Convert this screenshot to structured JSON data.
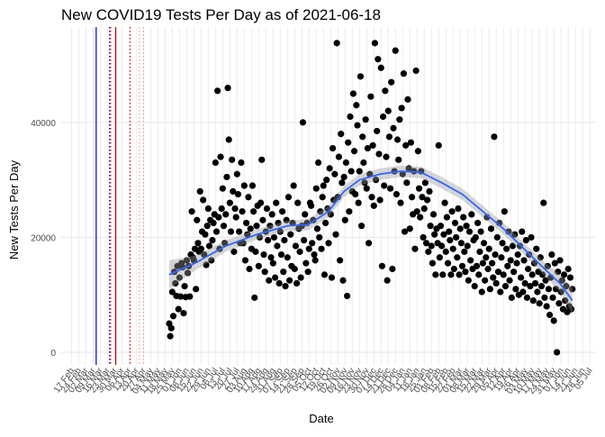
{
  "chart_data": {
    "type": "scatter",
    "title": "New COVID19 Tests Per Day as of 2021-06-18",
    "x_label": "Date",
    "y_label": "New Tests Per Day",
    "xlim": [
      -10,
      510
    ],
    "ylim": [
      -2200,
      56600
    ],
    "yticks": [
      0,
      20000,
      40000
    ],
    "xticks": [
      {
        "value": 0,
        "label": "17 Feb"
      },
      {
        "value": 7,
        "label": "24 Feb"
      },
      {
        "value": 14,
        "label": "02 Mar"
      },
      {
        "value": 21,
        "label": "09 Mar"
      },
      {
        "value": 28,
        "label": "16 Mar"
      },
      {
        "value": 35,
        "label": "23 Mar"
      },
      {
        "value": 42,
        "label": "30 Mar"
      },
      {
        "value": 49,
        "label": "06 Apr"
      },
      {
        "value": 56,
        "label": "13 Apr"
      },
      {
        "value": 63,
        "label": "20 Apr"
      },
      {
        "value": 70,
        "label": "27 Apr"
      },
      {
        "value": 77,
        "label": "04 May"
      },
      {
        "value": 84,
        "label": "11 May"
      },
      {
        "value": 91,
        "label": "18 May"
      },
      {
        "value": 98,
        "label": "25 May"
      },
      {
        "value": 105,
        "label": "01 Jun"
      },
      {
        "value": 112,
        "label": "08 Jun"
      },
      {
        "value": 119,
        "label": "15 Jun"
      },
      {
        "value": 126,
        "label": "22 Jun"
      },
      {
        "value": 133,
        "label": "29 Jun"
      },
      {
        "value": 140,
        "label": "06 Jul"
      },
      {
        "value": 147,
        "label": "13 Jul"
      },
      {
        "value": 154,
        "label": "20 Jul"
      },
      {
        "value": 161,
        "label": "27 Jul"
      },
      {
        "value": 168,
        "label": "03 Aug"
      },
      {
        "value": 175,
        "label": "10 Aug"
      },
      {
        "value": 182,
        "label": "17 Aug"
      },
      {
        "value": 189,
        "label": "24 Aug"
      },
      {
        "value": 196,
        "label": "31 Aug"
      },
      {
        "value": 203,
        "label": "07 Sep"
      },
      {
        "value": 210,
        "label": "14 Sep"
      },
      {
        "value": 217,
        "label": "21 Sep"
      },
      {
        "value": 224,
        "label": "28 Sep"
      },
      {
        "value": 231,
        "label": "05 Oct"
      },
      {
        "value": 238,
        "label": "12 Oct"
      },
      {
        "value": 245,
        "label": "19 Oct"
      },
      {
        "value": 252,
        "label": "26 Oct"
      },
      {
        "value": 259,
        "label": "02 Nov"
      },
      {
        "value": 266,
        "label": "09 Nov"
      },
      {
        "value": 273,
        "label": "16 Nov"
      },
      {
        "value": 280,
        "label": "23 Nov"
      },
      {
        "value": 287,
        "label": "30 Nov"
      },
      {
        "value": 294,
        "label": "07 Dec"
      },
      {
        "value": 301,
        "label": "14 Dec"
      },
      {
        "value": 308,
        "label": "21 Dec"
      },
      {
        "value": 315,
        "label": "28 Dec"
      },
      {
        "value": 322,
        "label": "04 Jan"
      },
      {
        "value": 329,
        "label": "11 Jan"
      },
      {
        "value": 336,
        "label": "18 Jan"
      },
      {
        "value": 343,
        "label": "25 Jan"
      },
      {
        "value": 350,
        "label": "01 Feb"
      },
      {
        "value": 357,
        "label": "08 Feb"
      },
      {
        "value": 364,
        "label": "15 Feb"
      },
      {
        "value": 371,
        "label": "22 Feb"
      },
      {
        "value": 378,
        "label": "01 Mar"
      },
      {
        "value": 385,
        "label": "08 Mar"
      },
      {
        "value": 392,
        "label": "15 Mar"
      },
      {
        "value": 399,
        "label": "22 Mar"
      },
      {
        "value": 406,
        "label": "29 Mar"
      },
      {
        "value": 413,
        "label": "05 Apr"
      },
      {
        "value": 420,
        "label": "12 Apr"
      },
      {
        "value": 427,
        "label": "19 Apr"
      },
      {
        "value": 434,
        "label": "26 Apr"
      },
      {
        "value": 441,
        "label": "03 May"
      },
      {
        "value": 448,
        "label": "10 May"
      },
      {
        "value": 455,
        "label": "17 May"
      },
      {
        "value": 462,
        "label": "24 May"
      },
      {
        "value": 469,
        "label": "31 May"
      },
      {
        "value": 476,
        "label": "07 Jun"
      },
      {
        "value": 483,
        "label": "14 Jun"
      },
      {
        "value": 490,
        "label": "21 Jun"
      },
      {
        "value": 497,
        "label": "28 Jun"
      },
      {
        "value": 504,
        "label": "05 Jul"
      }
    ],
    "grid": true,
    "color": "#000000",
    "x": [
      95,
      96,
      97,
      98,
      99,
      100,
      101,
      102,
      103,
      104,
      105,
      106,
      107,
      108,
      109,
      110,
      111,
      112,
      113,
      114,
      115,
      116,
      117,
      118,
      119,
      120,
      121,
      122,
      123,
      124,
      125,
      126,
      127,
      128,
      129,
      130,
      131,
      132,
      133,
      134,
      135,
      136,
      137,
      138,
      139,
      140,
      141,
      142,
      143,
      144,
      145,
      146,
      147,
      148,
      149,
      150,
      151,
      152,
      153,
      154,
      155,
      156,
      157,
      158,
      159,
      160,
      161,
      162,
      163,
      164,
      165,
      166,
      167,
      168,
      169,
      170,
      171,
      172,
      173,
      174,
      175,
      176,
      177,
      178,
      179,
      180,
      181,
      182,
      183,
      184,
      185,
      186,
      187,
      188,
      189,
      190,
      191,
      192,
      193,
      194,
      195,
      196,
      197,
      198,
      199,
      200,
      201,
      202,
      203,
      204,
      205,
      206,
      207,
      208,
      209,
      210,
      211,
      212,
      213,
      214,
      215,
      216,
      217,
      218,
      219,
      220,
      221,
      222,
      223,
      224,
      225,
      226,
      227,
      228,
      229,
      230,
      231,
      232,
      233,
      234,
      235,
      236,
      237,
      238,
      239,
      240,
      241,
      242,
      243,
      244,
      245,
      246,
      247,
      248,
      249,
      250,
      251,
      252,
      253,
      254,
      255,
      256,
      257,
      258,
      259,
      260,
      261,
      262,
      263,
      264,
      265,
      266,
      267,
      268,
      269,
      270,
      271,
      272,
      273,
      274,
      275,
      276,
      277,
      278,
      279,
      280,
      281,
      282,
      283,
      284,
      285,
      286,
      287,
      288,
      289,
      290,
      291,
      292,
      293,
      294,
      295,
      296,
      297,
      298,
      299,
      300,
      301,
      302,
      303,
      304,
      305,
      306,
      307,
      308,
      309,
      310,
      311,
      312,
      313,
      314,
      315,
      316,
      317,
      318,
      319,
      320,
      321,
      322,
      323,
      324,
      325,
      326,
      327,
      328,
      329,
      330,
      331,
      332,
      333,
      334,
      335,
      336,
      337,
      338,
      339,
      340,
      341,
      342,
      343,
      344,
      345,
      346,
      347,
      348,
      349,
      350,
      351,
      352,
      353,
      354,
      355,
      356,
      357,
      358,
      359,
      360,
      361,
      362,
      363,
      364,
      365,
      366,
      367,
      368,
      369,
      370,
      371,
      372,
      373,
      374,
      375,
      376,
      377,
      378,
      379,
      380,
      381,
      382,
      383,
      384,
      385,
      386,
      387,
      388,
      389,
      390,
      391,
      392,
      393,
      394,
      395,
      396,
      397,
      398,
      399,
      400,
      401,
      402,
      403,
      404,
      405,
      406,
      407,
      408,
      409,
      410,
      411,
      412,
      413,
      414,
      415,
      416,
      417,
      418,
      419,
      420,
      421,
      422,
      423,
      424,
      425,
      426,
      427,
      428,
      429,
      430,
      431,
      432,
      433,
      434,
      435,
      436,
      437,
      438,
      439,
      440,
      441,
      442,
      443,
      444,
      445,
      446,
      447,
      448,
      449,
      450,
      451,
      452,
      453,
      454,
      455,
      456,
      457,
      458,
      459,
      460,
      461,
      462,
      463,
      464,
      465,
      466,
      467,
      468,
      469,
      470,
      471,
      472,
      473,
      474,
      475,
      476,
      477,
      478,
      479,
      480,
      481,
      482,
      483,
      484,
      485,
      486,
      487
    ],
    "values": [
      5000,
      2800,
      4200,
      10500,
      6300,
      14000,
      12000,
      9800,
      15000,
      7500,
      13000,
      9700,
      15500,
      14800,
      6800,
      11500,
      9600,
      16000,
      13800,
      15000,
      9700,
      17000,
      24500,
      16500,
      16000,
      18000,
      11000,
      23000,
      19000,
      17500,
      28000,
      18000,
      21000,
      26500,
      17000,
      20500,
      15200,
      22000,
      25000,
      18500,
      23000,
      16000,
      19500,
      22500,
      24000,
      33000,
      21000,
      45500,
      23500,
      18000,
      34000,
      25000,
      28500,
      22000,
      19000,
      24000,
      30500,
      46000,
      37000,
      26000,
      21000,
      33500,
      28000,
      17500,
      25000,
      23500,
      31000,
      27500,
      21000,
      19000,
      33000,
      24500,
      19000,
      29000,
      16000,
      22500,
      20500,
      27000,
      14500,
      21500,
      18000,
      29000,
      24500,
      9500,
      17500,
      22000,
      25500,
      15000,
      20000,
      26000,
      33500,
      23000,
      17000,
      14000,
      21000,
      25000,
      19500,
      12500,
      22000,
      16500,
      24000,
      15500,
      20000,
      13000,
      26000,
      18500,
      22500,
      12000,
      21000,
      17000,
      24500,
      14000,
      19500,
      11500,
      23000,
      16500,
      27000,
      12500,
      20500,
      15000,
      22500,
      29000,
      14500,
      18500,
      12000,
      26000,
      21500,
      17500,
      13000,
      22000,
      40000,
      19500,
      24000,
      15500,
      22500,
      14000,
      18000,
      26000,
      25500,
      19000,
      23000,
      17000,
      16000,
      28500,
      21500,
      33000,
      20000,
      24500,
      18000,
      27000,
      29000,
      13500,
      22500,
      30000,
      25000,
      19000,
      32000,
      24000,
      13000,
      35500,
      26500,
      31000,
      20500,
      53800,
      27000,
      34000,
      16000,
      38000,
      29500,
      12500,
      30500,
      23000,
      33000,
      9800,
      36500,
      24500,
      41000,
      31500,
      28000,
      45000,
      35000,
      27500,
      43000,
      39500,
      26000,
      31500,
      48000,
      22000,
      37500,
      33000,
      29500,
      40500,
      28500,
      35500,
      19000,
      31000,
      44500,
      27000,
      36000,
      25500,
      53800,
      30000,
      38500,
      51000,
      34500,
      26500,
      49500,
      15000,
      41000,
      29000,
      45500,
      34000,
      12500,
      42000,
      37500,
      28500,
      47000,
      14500,
      39000,
      31500,
      52500,
      27500,
      37000,
      33500,
      40500,
      26000,
      42500,
      31000,
      48500,
      21000,
      36000,
      29500,
      44000,
      32000,
      21500,
      36500,
      27000,
      24000,
      31500,
      18000,
      49000,
      24500,
      35000,
      28500,
      23500,
      31500,
      27000,
      20000,
      25000,
      29500,
      19000,
      26500,
      17500,
      28000,
      22000,
      18500,
      15500,
      24000,
      20500,
      13500,
      21500,
      19000,
      36000,
      16500,
      22000,
      18500,
      13500,
      20500,
      26000,
      17500,
      23500,
      15500,
      21000,
      19500,
      13500,
      24500,
      18000,
      14500,
      22500,
      20000,
      16500,
      25000,
      13500,
      21500,
      19000,
      15000,
      23500,
      17500,
      14000,
      22000,
      18500,
      12500,
      21000,
      16000,
      24000,
      14500,
      19500,
      11500,
      20000,
      15000,
      22500,
      13500,
      17500,
      21000,
      10500,
      15500,
      19000,
      12500,
      16500,
      23500,
      14500,
      18000,
      11000,
      21500,
      15500,
      13000,
      37500,
      17000,
      12000,
      20000,
      14000,
      22500,
      10500,
      16500,
      19000,
      13500,
      24500,
      11500,
      18000,
      15000,
      21000,
      12500,
      16000,
      9500,
      18500,
      14000,
      20500,
      11000,
      15500,
      17000,
      10000,
      18500,
      13000,
      21000,
      10500,
      16000,
      12000,
      19500,
      9500,
      14500,
      17000,
      11500,
      20000,
      13500,
      9000,
      15500,
      12000,
      18000,
      10500,
      14000,
      8500,
      16500,
      11500,
      13500,
      26000,
      9500,
      12500,
      8000,
      15000,
      11000,
      6500,
      13000,
      17000,
      9500,
      5500,
      15500,
      11000,
      0,
      14000,
      8500,
      16000,
      10500,
      12500,
      7500,
      13500,
      9000,
      11500,
      7000,
      14500,
      8000,
      13000,
      7500,
      11000
    ],
    "smooth": {
      "color": "#3366ff",
      "x": [
        95,
        120,
        150,
        180,
        210,
        230,
        250,
        265,
        280,
        300,
        320,
        340,
        360,
        380,
        400,
        420,
        440,
        460,
        475,
        487
      ],
      "values": [
        13500,
        15500,
        18500,
        20500,
        22000,
        22200,
        24500,
        28000,
        30000,
        31000,
        31500,
        31300,
        29500,
        27500,
        24500,
        21500,
        18000,
        14500,
        12000,
        9000
      ],
      "lower": [
        11000,
        14200,
        17500,
        19600,
        21100,
        21200,
        23500,
        27000,
        29000,
        30000,
        30500,
        30300,
        28500,
        26500,
        23500,
        20500,
        17000,
        13300,
        10500,
        6700
      ],
      "upper": [
        16000,
        16800,
        19500,
        21400,
        22900,
        23200,
        25500,
        29000,
        31000,
        32000,
        32500,
        32300,
        30500,
        28500,
        25500,
        22500,
        19000,
        15700,
        13500,
        11300
      ]
    },
    "vlines": [
      {
        "x": 24,
        "color": "#0000cc",
        "dashed": false
      },
      {
        "x": 37,
        "color": "#0000cc",
        "dashed": true
      },
      {
        "x": 38,
        "color": "#cc0000",
        "dashed": true
      },
      {
        "x": 43,
        "color": "#cc0000",
        "dashed": false
      },
      {
        "x": 57,
        "color": "#cc0000",
        "dashed": true
      },
      {
        "x": 66,
        "color": "#e8a0a0",
        "dashed": true
      },
      {
        "x": 70,
        "color": "#e8a0a0",
        "dashed": true
      }
    ]
  }
}
